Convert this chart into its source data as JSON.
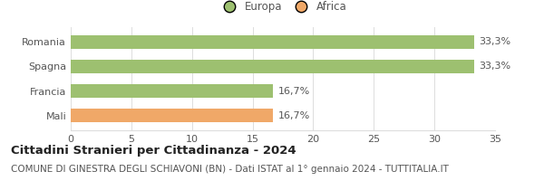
{
  "categories": [
    "Romania",
    "Spagna",
    "Francia",
    "Mali"
  ],
  "values": [
    33.3,
    33.3,
    16.7,
    16.7
  ],
  "bar_colors": [
    "#9dc070",
    "#9dc070",
    "#9dc070",
    "#f0a868"
  ],
  "value_labels": [
    "33,3%",
    "33,3%",
    "16,7%",
    "16,7%"
  ],
  "title": "Cittadini Stranieri per Cittadinanza - 2024",
  "subtitle": "COMUNE DI GINESTRA DEGLI SCHIAVONI (BN) - Dati ISTAT al 1° gennaio 2024 - TUTTITALIA.IT",
  "xlim": [
    0,
    35
  ],
  "xticks": [
    0,
    5,
    10,
    15,
    20,
    25,
    30,
    35
  ],
  "legend_labels": [
    "Europa",
    "Africa"
  ],
  "legend_colors": [
    "#9dc070",
    "#f0a868"
  ],
  "background_color": "#ffffff",
  "grid_color": "#dddddd",
  "bar_height": 0.55,
  "title_fontsize": 9.5,
  "subtitle_fontsize": 7.5,
  "label_fontsize": 8,
  "tick_fontsize": 8,
  "legend_fontsize": 8.5,
  "text_color": "#555555",
  "title_color": "#222222"
}
